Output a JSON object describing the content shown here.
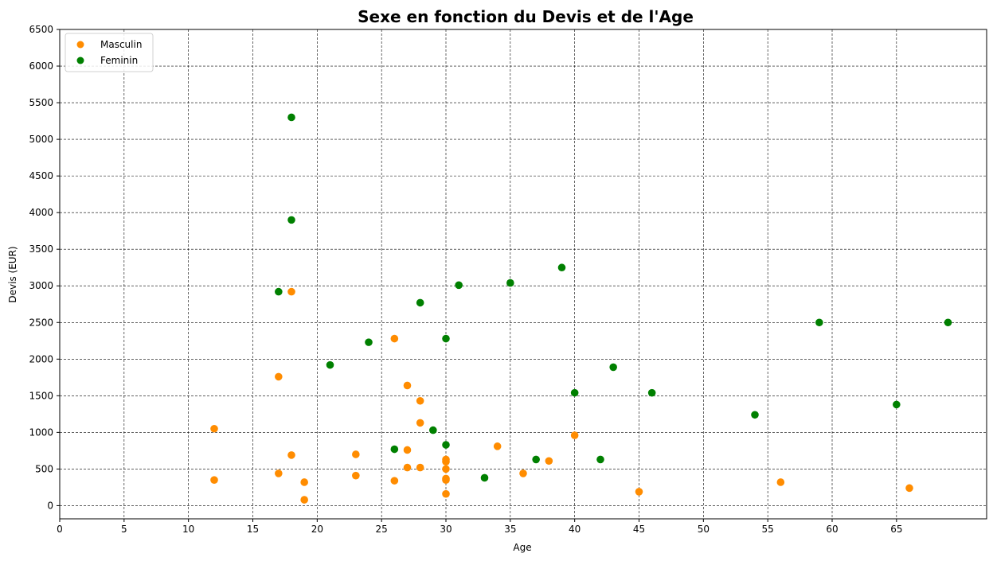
{
  "chart_data": {
    "type": "scatter",
    "title": "Sexe en fonction du Devis et de l'Age",
    "xlabel": "Age",
    "ylabel": "Devis (EUR)",
    "xlim": [
      0,
      72
    ],
    "ylim": [
      -180,
      6500
    ],
    "xticks": [
      0,
      5,
      10,
      15,
      20,
      25,
      30,
      35,
      40,
      45,
      50,
      55,
      60,
      65
    ],
    "yticks": [
      0,
      500,
      1000,
      1500,
      2000,
      2500,
      3000,
      3500,
      4000,
      4500,
      5000,
      5500,
      6000,
      6500
    ],
    "grid": true,
    "legend_position": "top-left",
    "series": [
      {
        "name": "Masculin",
        "color": "#ff8c00",
        "points": [
          [
            12,
            1050
          ],
          [
            12,
            350
          ],
          [
            17,
            1760
          ],
          [
            17,
            440
          ],
          [
            18,
            2920
          ],
          [
            18,
            690
          ],
          [
            19,
            320
          ],
          [
            19,
            80
          ],
          [
            23,
            700
          ],
          [
            23,
            410
          ],
          [
            26,
            2280
          ],
          [
            26,
            340
          ],
          [
            27,
            1640
          ],
          [
            27,
            760
          ],
          [
            27,
            520
          ],
          [
            28,
            1430
          ],
          [
            28,
            1130
          ],
          [
            28,
            520
          ],
          [
            30,
            630
          ],
          [
            30,
            600
          ],
          [
            30,
            500
          ],
          [
            30,
            370
          ],
          [
            30,
            350
          ],
          [
            30,
            160
          ],
          [
            34,
            810
          ],
          [
            36,
            440
          ],
          [
            38,
            610
          ],
          [
            40,
            960
          ],
          [
            45,
            190
          ],
          [
            56,
            320
          ],
          [
            66,
            240
          ]
        ]
      },
      {
        "name": "Feminin",
        "color": "#008000",
        "points": [
          [
            17,
            2920
          ],
          [
            18,
            5300
          ],
          [
            18,
            3900
          ],
          [
            21,
            1920
          ],
          [
            24,
            2230
          ],
          [
            26,
            770
          ],
          [
            28,
            2770
          ],
          [
            29,
            1030
          ],
          [
            30,
            2280
          ],
          [
            30,
            830
          ],
          [
            31,
            3010
          ],
          [
            33,
            380
          ],
          [
            35,
            3040
          ],
          [
            37,
            630
          ],
          [
            39,
            3250
          ],
          [
            40,
            1540
          ],
          [
            42,
            630
          ],
          [
            43,
            1890
          ],
          [
            46,
            1540
          ],
          [
            54,
            1240
          ],
          [
            59,
            2500
          ],
          [
            65,
            1380
          ],
          [
            69,
            2500
          ]
        ]
      }
    ]
  }
}
